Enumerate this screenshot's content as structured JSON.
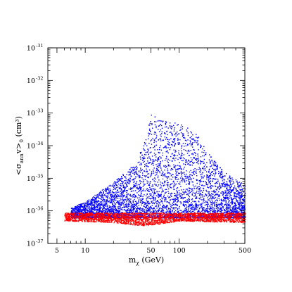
{
  "chart_data": {
    "type": "scatter",
    "title": "",
    "x_scale": "log",
    "y_scale": "log",
    "xlim": [
      4,
      500
    ],
    "ylim": [
      1e-37,
      1e-31
    ],
    "x_ticks": [
      {
        "value": 5,
        "label": "5"
      },
      {
        "value": 10,
        "label": "10"
      },
      {
        "value": 50,
        "label": "50"
      },
      {
        "value": 100,
        "label": "100"
      },
      {
        "value": 500,
        "label": "500"
      }
    ],
    "y_ticks": [
      {
        "value": -37,
        "mantissa": "10",
        "exponent": "-37"
      },
      {
        "value": -36,
        "mantissa": "10",
        "exponent": "-36"
      },
      {
        "value": -35,
        "mantissa": "10",
        "exponent": "-35"
      },
      {
        "value": -34,
        "mantissa": "10",
        "exponent": "-34"
      },
      {
        "value": -33,
        "mantissa": "10",
        "exponent": "-33"
      },
      {
        "value": -32,
        "mantissa": "10",
        "exponent": "-32"
      },
      {
        "value": -31,
        "mantissa": "10",
        "exponent": "-31"
      }
    ],
    "xlabel": {
      "main": "m",
      "sub": "χ",
      "rest": " (GeV)"
    },
    "ylabel": {
      "open": "<σ",
      "sub1": "ann",
      "mid": "v>",
      "sub2": "0",
      "rest": "  (cm³)"
    },
    "series": [
      {
        "color": "#0000ff",
        "x_range_GeV": [
          7,
          500
        ],
        "approx_log10_y_range": [
          -36.3,
          -32.6
        ],
        "points_note_units": "log10 cm3",
        "envelope": [
          [
            7,
            -36.2,
            -35.9
          ],
          [
            10,
            -36.2,
            -35.7
          ],
          [
            20,
            -36.2,
            -35.1
          ],
          [
            35,
            -36.2,
            -34.5
          ],
          [
            45,
            -36.2,
            -33.6
          ],
          [
            50,
            -36.2,
            -33.0
          ],
          [
            60,
            -36.2,
            -33.2
          ],
          [
            100,
            -36.2,
            -33.3
          ],
          [
            150,
            -36.2,
            -33.6
          ],
          [
            200,
            -36.2,
            -34.2
          ],
          [
            300,
            -36.2,
            -34.8
          ],
          [
            500,
            -36.2,
            -35.2
          ]
        ]
      },
      {
        "color": "#ff0000",
        "x_range_GeV": [
          6,
          500
        ],
        "approx_log10_y_range": [
          -36.5,
          -36.0
        ],
        "envelope": [
          [
            6,
            -36.3,
            -36.05
          ],
          [
            20,
            -36.35,
            -36.05
          ],
          [
            40,
            -36.45,
            -36.05
          ],
          [
            60,
            -36.4,
            -36.05
          ],
          [
            100,
            -36.3,
            -36.05
          ],
          [
            500,
            -36.35,
            -36.05
          ]
        ]
      }
    ],
    "grid": false,
    "legend": "none"
  }
}
